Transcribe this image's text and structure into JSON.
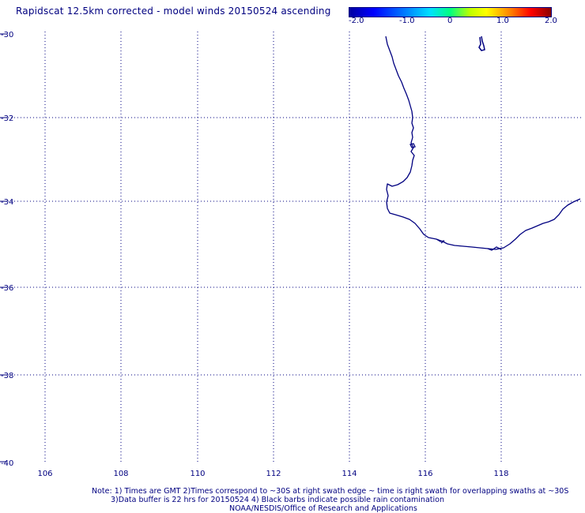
{
  "title": "Rapidscat 12.5km corrected - model winds 20150524 ascending",
  "colorbar": {
    "labels": [
      "-2.0",
      "-1.0",
      "0",
      "1.0",
      "2.0"
    ]
  },
  "axes": {
    "lat_labels": [
      "-30",
      "-32",
      "-34",
      "-36",
      "-38",
      "-40"
    ],
    "lon_labels": [
      "106",
      "108",
      "110",
      "112",
      "114",
      "116",
      "118"
    ]
  },
  "footer": {
    "line1": "Note: 1) Times are GMT 2)Times correspond to ~30S at right swath edge ~ time is right swath for overlapping swaths at ~30S",
    "line2": "3)Data buffer is 22 hrs for 20150524 4) Black barbs indicate possible rain contamination",
    "line3": "NOAA/NESDIS/Office of Research and Applications"
  },
  "colors": {
    "text": "#000080",
    "grid": "#000080",
    "coast": "#000080"
  }
}
